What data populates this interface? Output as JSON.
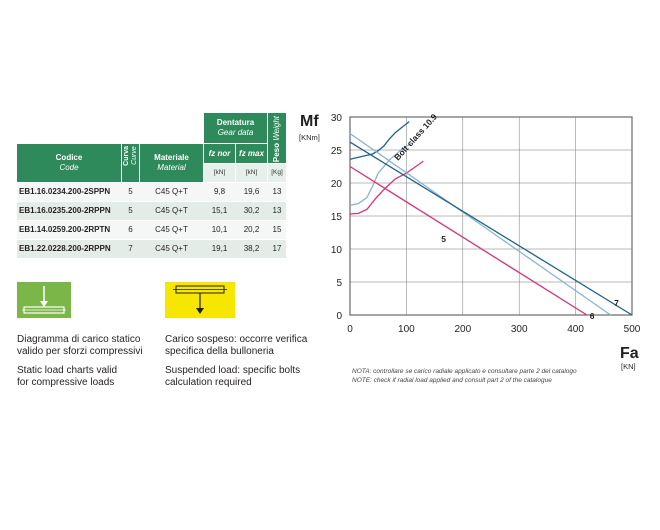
{
  "table": {
    "headers": {
      "code": "Codice",
      "code_en": "Code",
      "curve": "Curva",
      "curve_en": "Curve",
      "material": "Materiale",
      "material_en": "Material",
      "gear": "Dentatura",
      "gear_en": "Gear data",
      "fz_nor": "fz nor",
      "fz_max": "fz max",
      "weight": "Peso",
      "weight_en": "Weight"
    },
    "units": {
      "fz_nor": "[kN]",
      "fz_max": "[kN]",
      "weight": "[Kg]"
    },
    "rows": [
      {
        "code": "EB1.16.0234.200-2SPPN",
        "curve": "5",
        "material": "C45 Q+T",
        "fz_nor": "9,8",
        "fz_max": "19,6",
        "weight": "13"
      },
      {
        "code": "EB1.16.0235.200-2RPPN",
        "curve": "5",
        "material": "C45 Q+T",
        "fz_nor": "15,1",
        "fz_max": "30,2",
        "weight": "13"
      },
      {
        "code": "EB1.14.0259.200-2RPTN",
        "curve": "6",
        "material": "C45 Q+T",
        "fz_nor": "10,1",
        "fz_max": "20,2",
        "weight": "15"
      },
      {
        "code": "EB1.22.0228.200-2RPPN",
        "curve": "7",
        "material": "C45 Q+T",
        "fz_nor": "19,1",
        "fz_max": "38,2",
        "weight": "17"
      }
    ]
  },
  "static_load": {
    "line1_it": "Diagramma di carico statico",
    "line2_it": "valido per sforzi compressivi",
    "line1_en": "Static load charts valid",
    "line2_en": "for compressive loads",
    "icon_color": "#7ab648"
  },
  "suspended_load": {
    "line1_it": "Carico sospeso: occorre verifica",
    "line2_it": "specifica della bulloneria",
    "line1_en": "Suspended load: specific bolts",
    "line2_en": "calculation required",
    "icon_color": "#f7e600"
  },
  "notes": {
    "it": "NOTA: controllare se carico radiale applicato e consultare parte 2 del catalogo",
    "en": "NOTE: check if radial load applied and consult part 2  of the catalogue"
  },
  "chart_data": {
    "type": "line",
    "ylabel": "Mf",
    "ylabel_unit": "[KNm]",
    "xlabel": "Fa",
    "xlabel_unit": "[KN]",
    "xlim": [
      0,
      500
    ],
    "ylim": [
      0,
      30
    ],
    "x_ticks": [
      "0",
      "100",
      "200",
      "300",
      "400",
      "500"
    ],
    "y_ticks": [
      "0",
      "5",
      "10",
      "15",
      "20",
      "25",
      "30"
    ],
    "grid": true,
    "bolt_label": "Bolt class 10.9",
    "series": [
      {
        "name": "5",
        "color": "#d6337a",
        "x": [
          0,
          420
        ],
        "y": [
          22.5,
          0
        ]
      },
      {
        "name": "6",
        "color": "#8ab4d0",
        "x": [
          0,
          462
        ],
        "y": [
          27.5,
          0
        ]
      },
      {
        "name": "7",
        "color": "#1f5f8b",
        "x": [
          0,
          500
        ],
        "y": [
          26.2,
          0
        ]
      }
    ],
    "bolt_curves": [
      {
        "color": "#d6337a",
        "x": [
          0,
          15,
          30,
          45,
          60,
          80,
          100,
          130
        ],
        "y": [
          15.3,
          15.4,
          16.0,
          17.6,
          19.0,
          20.6,
          21.5,
          23.3
        ]
      },
      {
        "color": "#8ab4d0",
        "x": [
          0,
          15,
          30,
          40,
          50,
          70,
          90,
          110
        ],
        "y": [
          16.6,
          16.9,
          17.8,
          19.5,
          21.5,
          23.5,
          25.0,
          26.1
        ]
      },
      {
        "color": "#1f5f8b",
        "x": [
          0,
          20,
          40,
          50,
          60,
          70,
          80,
          90,
          105
        ],
        "y": [
          23.6,
          24.0,
          24.4,
          24.9,
          25.6,
          26.7,
          27.6,
          28.3,
          29.3
        ]
      }
    ]
  }
}
